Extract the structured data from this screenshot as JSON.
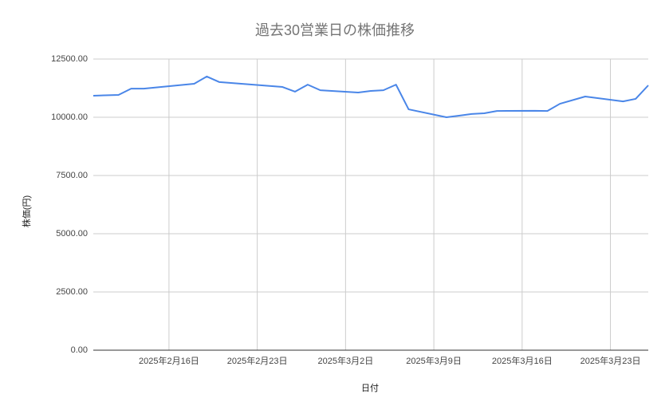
{
  "chart_data": {
    "type": "line",
    "title": "過去30営業日の株価推移",
    "x_label": "日付",
    "y_label": "株価(円)",
    "x": [
      "2025-02-10",
      "2025-02-12",
      "2025-02-13",
      "2025-02-14",
      "2025-02-18",
      "2025-02-19",
      "2025-02-20",
      "2025-02-25",
      "2025-02-26",
      "2025-02-27",
      "2025-02-28",
      "2025-03-03",
      "2025-03-04",
      "2025-03-05",
      "2025-03-06",
      "2025-03-07",
      "2025-03-10",
      "2025-03-11",
      "2025-03-12",
      "2025-03-13",
      "2025-03-14",
      "2025-03-17",
      "2025-03-18",
      "2025-03-19",
      "2025-03-21",
      "2025-03-24",
      "2025-03-25",
      "2025-03-26"
    ],
    "values": [
      10925,
      10960,
      11230,
      11230,
      11440,
      11750,
      11510,
      11300,
      11100,
      11400,
      11160,
      11060,
      11130,
      11160,
      11400,
      10340,
      10000,
      10070,
      10140,
      10170,
      10270,
      10280,
      10270,
      10580,
      10890,
      10680,
      10790,
      11370
    ],
    "color": "#4a86e8",
    "xlim": [
      "2025-02-10",
      "2025-03-26"
    ],
    "xticks": [
      {
        "value": "2025-02-16",
        "label": "2025年2月16日"
      },
      {
        "value": "2025-02-23",
        "label": "2025年2月23日"
      },
      {
        "value": "2025-03-02",
        "label": "2025年3月2日"
      },
      {
        "value": "2025-03-09",
        "label": "2025年3月9日"
      },
      {
        "value": "2025-03-16",
        "label": "2025年3月16日"
      },
      {
        "value": "2025-03-23",
        "label": "2025年3月23日"
      }
    ],
    "ylim": [
      0,
      12500
    ],
    "yticks": [
      {
        "value": 0,
        "label": "0.00"
      },
      {
        "value": 2500,
        "label": "2500.00"
      },
      {
        "value": 5000,
        "label": "5000.00"
      },
      {
        "value": 7500,
        "label": "7500.00"
      },
      {
        "value": 10000,
        "label": "10000.00"
      },
      {
        "value": 12500,
        "label": "12500.00"
      }
    ],
    "grid": true
  }
}
